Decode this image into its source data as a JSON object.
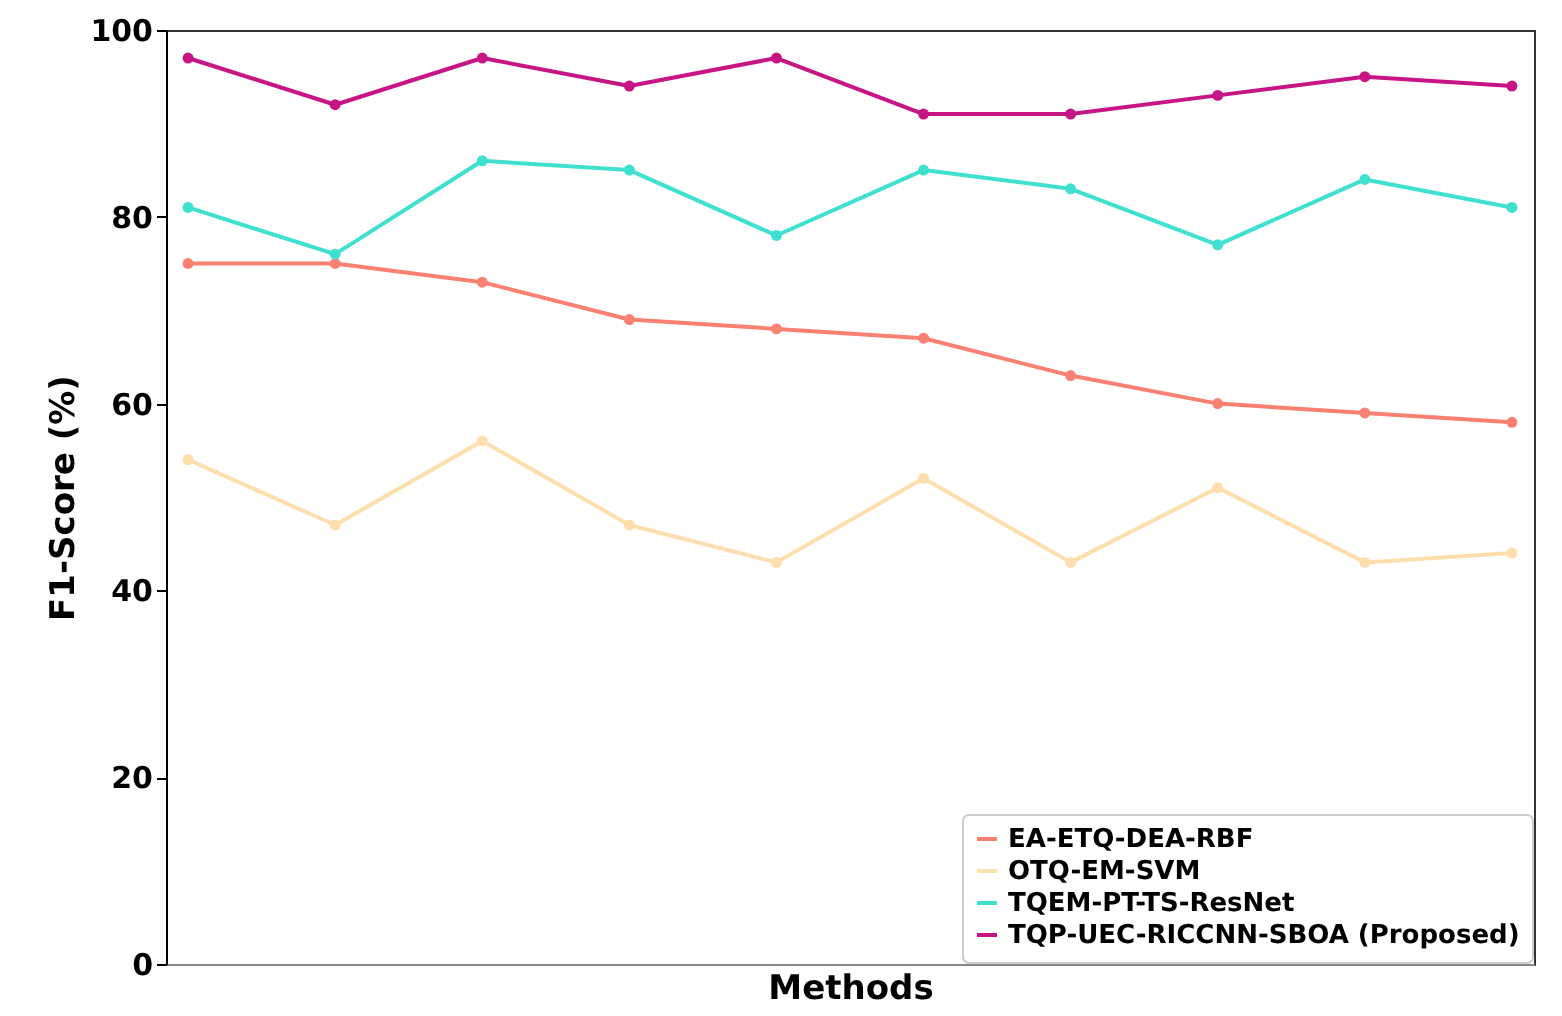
{
  "chart_data": {
    "type": "line",
    "xlabel": "Methods",
    "ylabel": "F1-Score (%)",
    "categories": [
      null,
      null,
      null,
      null,
      null,
      null,
      null,
      null,
      null,
      null
    ],
    "ylim": [
      0,
      100
    ],
    "yticks": [
      0,
      20,
      40,
      60,
      80,
      100
    ],
    "grid": false,
    "legend": "bottom right",
    "marker": "circle",
    "line_style": "solid",
    "series": [
      {
        "name": "EA-ETQ-DEA-RBF",
        "color": "#fa8072",
        "values": [
          75,
          75,
          73,
          69,
          68,
          67,
          63,
          60,
          59,
          58
        ]
      },
      {
        "name": "OTQ-EM-SVM",
        "color": "#ffdead",
        "values": [
          54,
          47,
          56,
          47,
          43,
          52,
          43,
          51,
          43,
          44
        ]
      },
      {
        "name": "TQEM-PT-TS-ResNet",
        "color": "#40e0d0",
        "values": [
          81,
          76,
          86,
          85,
          78,
          85,
          83,
          77,
          84,
          81
        ]
      },
      {
        "name": "TQP-UEC-RICCNN-SBOA (Proposed)",
        "color": "#c71585",
        "values": [
          97,
          92,
          97,
          94,
          97,
          91,
          91,
          93,
          95,
          94
        ]
      }
    ]
  }
}
